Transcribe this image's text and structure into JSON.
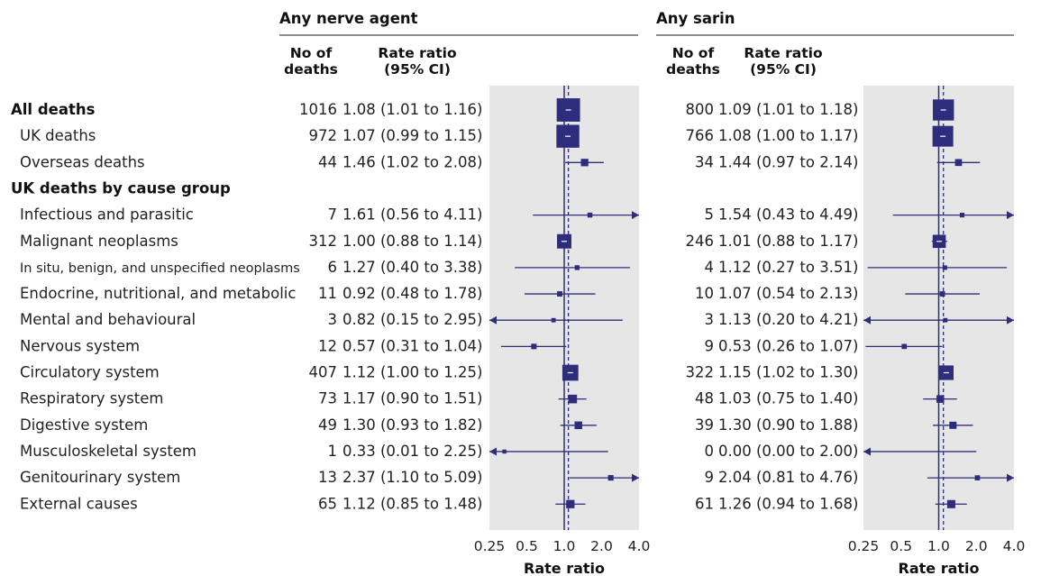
{
  "figure": {
    "colors": {
      "mark": "#2e2d7c",
      "plot_bg": "#e6e6e6",
      "rule": "#222222",
      "text": "#222222"
    },
    "rows": [
      {
        "label": "All deaths",
        "bold": true
      },
      {
        "label": "UK  deaths",
        "bold": false
      },
      {
        "label": "Overseas deaths",
        "bold": false
      },
      {
        "label": "UK deaths by cause group",
        "bold": true,
        "heading": true
      },
      {
        "label": "Infectious and parasitic",
        "bold": false
      },
      {
        "label": "Malignant neoplasms",
        "bold": false
      },
      {
        "label": "In situ, benign, and unspecified neoplasms",
        "bold": false,
        "small": true
      },
      {
        "label": "Endocrine, nutritional, and metabolic",
        "bold": false
      },
      {
        "label": "Mental and behavioural",
        "bold": false
      },
      {
        "label": "Nervous system",
        "bold": false
      },
      {
        "label": "Circulatory system",
        "bold": false
      },
      {
        "label": "Respiratory system",
        "bold": false
      },
      {
        "label": "Digestive system",
        "bold": false
      },
      {
        "label": "Musculoskeletal system",
        "bold": false
      },
      {
        "label": "Genitourinary system",
        "bold": false
      },
      {
        "label": "External causes",
        "bold": false
      }
    ]
  },
  "chart_data": [
    {
      "type": "forest",
      "title": "Any nerve agent",
      "col_deaths": [
        "No of",
        "deaths"
      ],
      "col_rr": [
        "Rate ratio",
        "(95% CI)"
      ],
      "xlabel": "Rate ratio",
      "x_scale": "log",
      "xlim": [
        0.25,
        4.0
      ],
      "xticks": [
        "0.25",
        "0.5",
        "1.0",
        "2.0",
        "4.0"
      ],
      "reference_line": 1.0,
      "overall_dashed_line": 1.08,
      "rows": [
        {
          "deaths": "1016",
          "ci_text": "1.08 (1.01 to 1.16)",
          "rr": 1.08,
          "lo": 1.01,
          "hi": 1.16
        },
        {
          "deaths": "972",
          "ci_text": "1.07 (0.99 to 1.15)",
          "rr": 1.07,
          "lo": 0.99,
          "hi": 1.15
        },
        {
          "deaths": "44",
          "ci_text": "1.46 (1.02 to 2.08)",
          "rr": 1.46,
          "lo": 1.02,
          "hi": 2.08
        },
        null,
        {
          "deaths": "7",
          "ci_text": "1.61 (0.56 to 4.11)",
          "rr": 1.61,
          "lo": 0.56,
          "hi": 4.11
        },
        {
          "deaths": "312",
          "ci_text": "1.00 (0.88 to 1.14)",
          "rr": 1.0,
          "lo": 0.88,
          "hi": 1.14
        },
        {
          "deaths": "6",
          "ci_text": "1.27 (0.40 to 3.38)",
          "rr": 1.27,
          "lo": 0.4,
          "hi": 3.38
        },
        {
          "deaths": "11",
          "ci_text": "0.92 (0.48 to 1.78)",
          "rr": 0.92,
          "lo": 0.48,
          "hi": 1.78
        },
        {
          "deaths": "3",
          "ci_text": "0.82 (0.15 to 2.95)",
          "rr": 0.82,
          "lo": 0.15,
          "hi": 2.95
        },
        {
          "deaths": "12",
          "ci_text": "0.57 (0.31 to 1.04)",
          "rr": 0.57,
          "lo": 0.31,
          "hi": 1.04
        },
        {
          "deaths": "407",
          "ci_text": "1.12 (1.00 to 1.25)",
          "rr": 1.12,
          "lo": 1.0,
          "hi": 1.25
        },
        {
          "deaths": "73",
          "ci_text": "1.17 (0.90 to 1.51)",
          "rr": 1.17,
          "lo": 0.9,
          "hi": 1.51
        },
        {
          "deaths": "49",
          "ci_text": "1.30 (0.93 to 1.82)",
          "rr": 1.3,
          "lo": 0.93,
          "hi": 1.82
        },
        {
          "deaths": "1",
          "ci_text": "0.33 (0.01 to 2.25)",
          "rr": 0.33,
          "lo": 0.01,
          "hi": 2.25
        },
        {
          "deaths": "13",
          "ci_text": "2.37 (1.10 to 5.09)",
          "rr": 2.37,
          "lo": 1.1,
          "hi": 5.09
        },
        {
          "deaths": "65",
          "ci_text": "1.12 (0.85 to 1.48)",
          "rr": 1.12,
          "lo": 0.85,
          "hi": 1.48
        }
      ]
    },
    {
      "type": "forest",
      "title": "Any sarin",
      "col_deaths": [
        "No of",
        "deaths"
      ],
      "col_rr": [
        "Rate ratio",
        "(95% CI)"
      ],
      "xlabel": "Rate ratio",
      "x_scale": "log",
      "xlim": [
        0.25,
        4.0
      ],
      "xticks": [
        "0.25",
        "0.5",
        "1.0",
        "2.0",
        "4.0"
      ],
      "reference_line": 1.0,
      "overall_dashed_line": 1.09,
      "rows": [
        {
          "deaths": "800",
          "ci_text": "1.09 (1.01 to 1.18)",
          "rr": 1.09,
          "lo": 1.01,
          "hi": 1.18
        },
        {
          "deaths": "766",
          "ci_text": "1.08 (1.00 to 1.17)",
          "rr": 1.08,
          "lo": 1.0,
          "hi": 1.17
        },
        {
          "deaths": "34",
          "ci_text": "1.44 (0.97 to 2.14)",
          "rr": 1.44,
          "lo": 0.97,
          "hi": 2.14
        },
        null,
        {
          "deaths": "5",
          "ci_text": "1.54 (0.43 to 4.49)",
          "rr": 1.54,
          "lo": 0.43,
          "hi": 4.49
        },
        {
          "deaths": "246",
          "ci_text": "1.01 (0.88 to 1.17)",
          "rr": 1.01,
          "lo": 0.88,
          "hi": 1.17
        },
        {
          "deaths": "4",
          "ci_text": "1.12 (0.27 to 3.51)",
          "rr": 1.12,
          "lo": 0.27,
          "hi": 3.51
        },
        {
          "deaths": "10",
          "ci_text": "1.07 (0.54 to 2.13)",
          "rr": 1.07,
          "lo": 0.54,
          "hi": 2.13
        },
        {
          "deaths": "3",
          "ci_text": "1.13 (0.20 to 4.21)",
          "rr": 1.13,
          "lo": 0.2,
          "hi": 4.21
        },
        {
          "deaths": "9",
          "ci_text": "0.53 (0.26 to 1.07)",
          "rr": 0.53,
          "lo": 0.26,
          "hi": 1.07
        },
        {
          "deaths": "322",
          "ci_text": "1.15 (1.02 to 1.30)",
          "rr": 1.15,
          "lo": 1.02,
          "hi": 1.3
        },
        {
          "deaths": "48",
          "ci_text": "1.03 (0.75 to 1.40)",
          "rr": 1.03,
          "lo": 0.75,
          "hi": 1.4
        },
        {
          "deaths": "39",
          "ci_text": "1.30 (0.90 to 1.88)",
          "rr": 1.3,
          "lo": 0.9,
          "hi": 1.88
        },
        {
          "deaths": "0",
          "ci_text": "0.00 (0.00 to 2.00)",
          "rr": 0.0,
          "lo": 0.0,
          "hi": 2.0
        },
        {
          "deaths": "9",
          "ci_text": "2.04 (0.81 to 4.76)",
          "rr": 2.04,
          "lo": 0.81,
          "hi": 4.76
        },
        {
          "deaths": "61",
          "ci_text": "1.26 (0.94 to 1.68)",
          "rr": 1.26,
          "lo": 0.94,
          "hi": 1.68
        }
      ]
    }
  ]
}
